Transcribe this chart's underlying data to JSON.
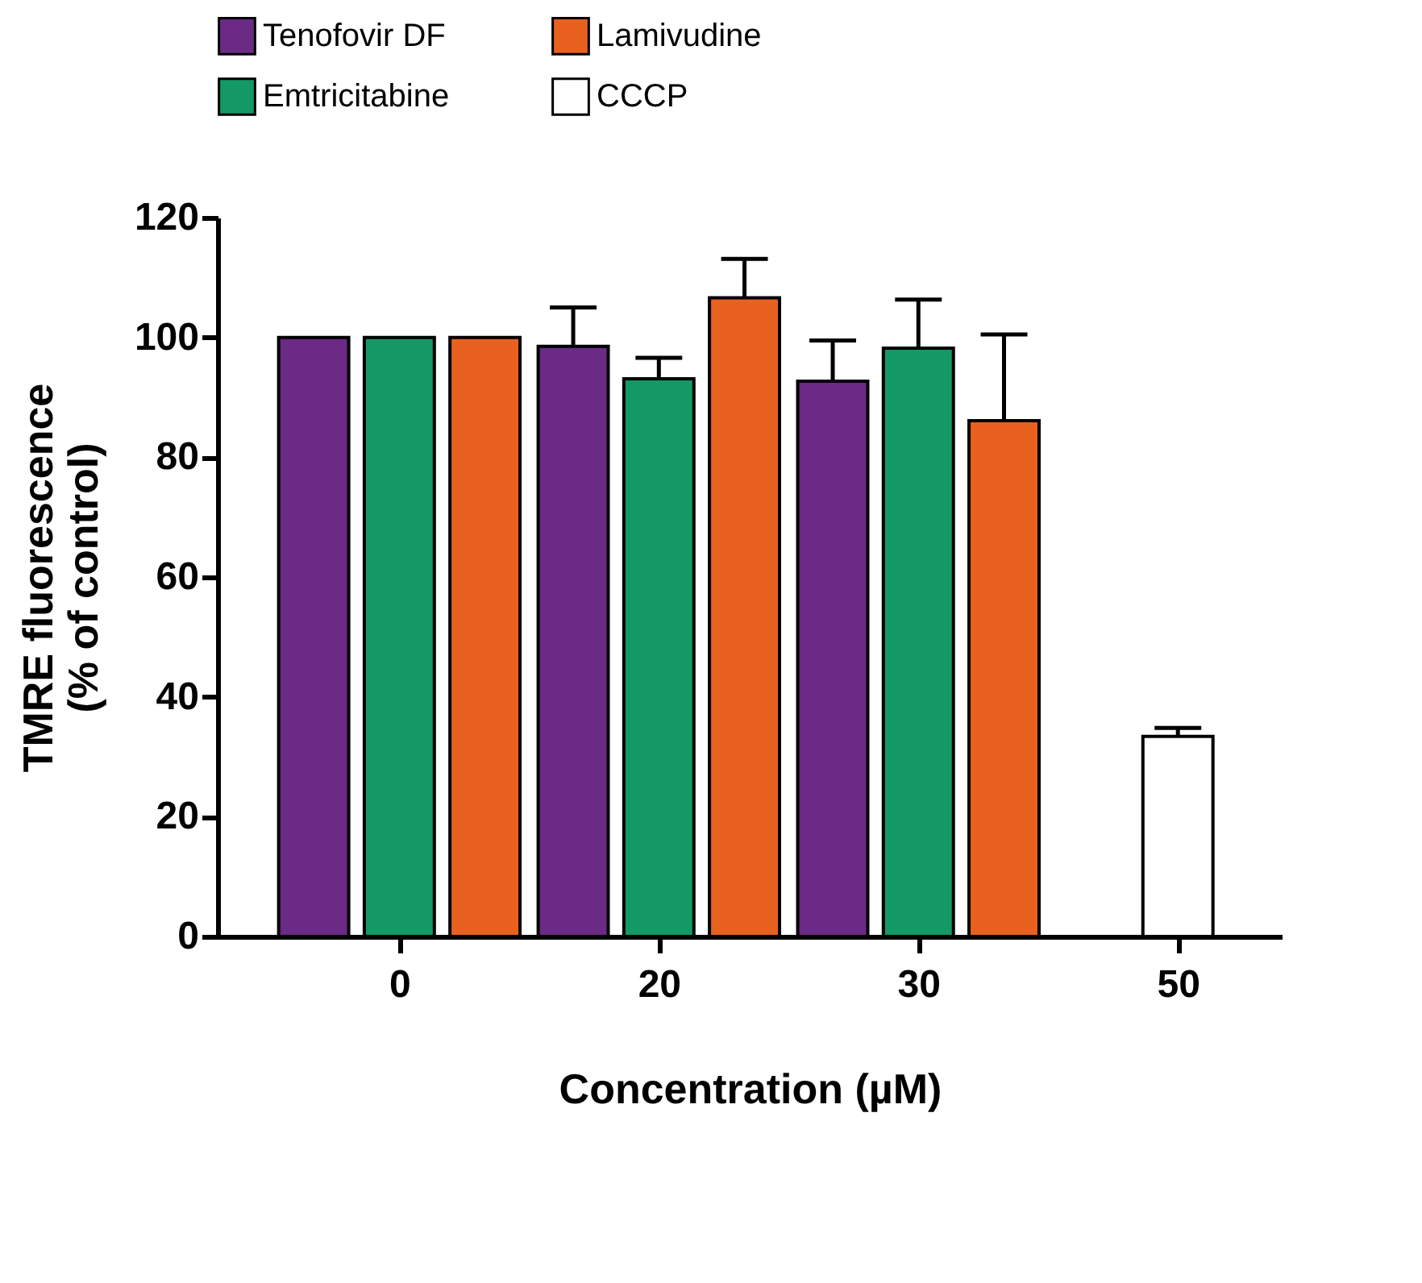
{
  "chart_data": {
    "type": "bar",
    "xlabel": "Concentration (µM)",
    "ylabel": "TMRE fluorescence\n(% of control)",
    "categories": [
      "0",
      "20",
      "30",
      "50"
    ],
    "series": [
      {
        "name": "Tenofovir DF",
        "color": "#6a2a85",
        "values": [
          100,
          98.5,
          92.7,
          null
        ],
        "errors": [
          null,
          6.5,
          6.8,
          null
        ]
      },
      {
        "name": "Emtricitabine",
        "color": "#149866",
        "values": [
          100,
          93.1,
          98.2,
          null
        ],
        "errors": [
          null,
          3.5,
          8.1,
          null
        ]
      },
      {
        "name": "Lamivudine",
        "color": "#e9611f",
        "values": [
          100,
          106.6,
          86.1,
          null
        ],
        "errors": [
          null,
          6.5,
          14.4,
          null
        ]
      },
      {
        "name": "CCCP",
        "color": "#ffffff",
        "values": [
          null,
          null,
          null,
          33.4
        ],
        "errors": [
          null,
          null,
          null,
          1.4
        ]
      }
    ],
    "ylim": [
      0,
      120
    ],
    "yticks": [
      0,
      20,
      40,
      60,
      80,
      100,
      120
    ],
    "grid": false,
    "legend": "top"
  }
}
